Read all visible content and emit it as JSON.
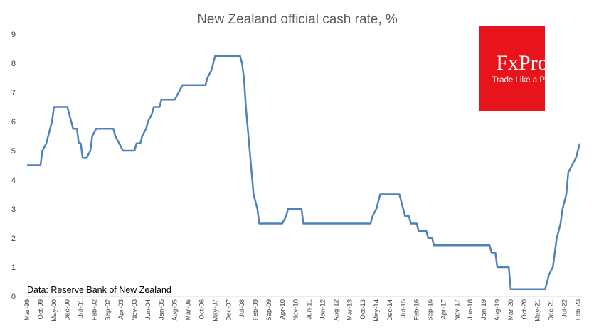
{
  "chart_data": {
    "type": "line",
    "title": "New Zealand official cash rate, %",
    "xlabel": "",
    "ylabel": "",
    "ylim": [
      0,
      9
    ],
    "y_ticks": [
      "0",
      "1",
      "2",
      "3",
      "4",
      "5",
      "6",
      "7",
      "8",
      "9"
    ],
    "x_tick_labels": [
      "Mar-99",
      "Oct-99",
      "May-00",
      "Dec-00",
      "Jul-01",
      "Feb-02",
      "Sep-02",
      "Apr-03",
      "Nov-03",
      "Jun-04",
      "Jan-05",
      "Aug-05",
      "Mar-06",
      "Oct-06",
      "May-07",
      "Dec-07",
      "Jul-08",
      "Feb-09",
      "Sep-09",
      "Apr-10",
      "Nov-10",
      "Jun-11",
      "Jan-12",
      "Aug-12",
      "Mar-13",
      "Oct-13",
      "May-14",
      "Dec-14",
      "Jul-15",
      "Feb-16",
      "Sep-16",
      "Apr-17",
      "Nov-17",
      "Jun-18",
      "Jan-19",
      "Aug-19",
      "Mar-20",
      "Oct-20",
      "May-21",
      "Dec-21",
      "Jul-22",
      "Feb-23"
    ],
    "grid": false,
    "line_color": "#4F81BD",
    "series": [
      {
        "points": [
          [
            "1999-03",
            4.5
          ],
          [
            "1999-10",
            4.5
          ],
          [
            "1999-11",
            5.0
          ],
          [
            "2000-01",
            5.25
          ],
          [
            "2000-03",
            5.75
          ],
          [
            "2000-04",
            6.0
          ],
          [
            "2000-05",
            6.5
          ],
          [
            "2000-12",
            6.5
          ],
          [
            "2001-01",
            6.25
          ],
          [
            "2001-03",
            5.75
          ],
          [
            "2001-05",
            5.75
          ],
          [
            "2001-06",
            5.25
          ],
          [
            "2001-07",
            5.25
          ],
          [
            "2001-08",
            4.75
          ],
          [
            "2001-10",
            4.75
          ],
          [
            "2001-12",
            5.0
          ],
          [
            "2002-01",
            5.5
          ],
          [
            "2002-03",
            5.75
          ],
          [
            "2002-06",
            5.75
          ],
          [
            "2002-09",
            5.75
          ],
          [
            "2002-12",
            5.75
          ],
          [
            "2003-01",
            5.5
          ],
          [
            "2003-03",
            5.25
          ],
          [
            "2003-05",
            5.0
          ],
          [
            "2003-11",
            5.0
          ],
          [
            "2003-12",
            5.25
          ],
          [
            "2004-02",
            5.25
          ],
          [
            "2004-03",
            5.5
          ],
          [
            "2004-05",
            5.75
          ],
          [
            "2004-06",
            6.0
          ],
          [
            "2004-08",
            6.25
          ],
          [
            "2004-09",
            6.5
          ],
          [
            "2004-12",
            6.5
          ],
          [
            "2005-01",
            6.75
          ],
          [
            "2005-08",
            6.75
          ],
          [
            "2005-10",
            7.0
          ],
          [
            "2005-12",
            7.25
          ],
          [
            "2006-08",
            7.25
          ],
          [
            "2006-12",
            7.25
          ],
          [
            "2007-01",
            7.5
          ],
          [
            "2007-03",
            7.75
          ],
          [
            "2007-04",
            8.0
          ],
          [
            "2007-05",
            8.25
          ],
          [
            "2007-12",
            8.25
          ],
          [
            "2008-06",
            8.25
          ],
          [
            "2008-07",
            8.0
          ],
          [
            "2008-08",
            7.5
          ],
          [
            "2008-09",
            6.5
          ],
          [
            "2008-11",
            5.0
          ],
          [
            "2009-01",
            3.5
          ],
          [
            "2009-03",
            3.0
          ],
          [
            "2009-04",
            2.5
          ],
          [
            "2010-04",
            2.5
          ],
          [
            "2010-06",
            2.75
          ],
          [
            "2010-07",
            3.0
          ],
          [
            "2011-02",
            3.0
          ],
          [
            "2011-03",
            2.5
          ],
          [
            "2014-02",
            2.5
          ],
          [
            "2014-03",
            2.75
          ],
          [
            "2014-05",
            3.0
          ],
          [
            "2014-06",
            3.25
          ],
          [
            "2014-07",
            3.5
          ],
          [
            "2015-05",
            3.5
          ],
          [
            "2015-06",
            3.25
          ],
          [
            "2015-07",
            3.0
          ],
          [
            "2015-08",
            2.75
          ],
          [
            "2015-10",
            2.75
          ],
          [
            "2015-11",
            2.5
          ],
          [
            "2016-02",
            2.5
          ],
          [
            "2016-03",
            2.25
          ],
          [
            "2016-07",
            2.25
          ],
          [
            "2016-08",
            2.0
          ],
          [
            "2016-10",
            2.0
          ],
          [
            "2016-11",
            1.75
          ],
          [
            "2019-04",
            1.75
          ],
          [
            "2019-05",
            1.5
          ],
          [
            "2019-07",
            1.5
          ],
          [
            "2019-08",
            1.0
          ],
          [
            "2020-02",
            1.0
          ],
          [
            "2020-03",
            0.25
          ],
          [
            "2021-09",
            0.25
          ],
          [
            "2021-10",
            0.5
          ],
          [
            "2021-11",
            0.75
          ],
          [
            "2022-01",
            1.0
          ],
          [
            "2022-02",
            1.5
          ],
          [
            "2022-03",
            2.0
          ],
          [
            "2022-05",
            2.5
          ],
          [
            "2022-06",
            3.0
          ],
          [
            "2022-07",
            3.25
          ],
          [
            "2022-08",
            3.5
          ],
          [
            "2022-09",
            4.25
          ],
          [
            "2022-11",
            4.5
          ],
          [
            "2023-01",
            4.75
          ],
          [
            "2023-02",
            5.0
          ],
          [
            "2023-03",
            5.25
          ]
        ]
      }
    ]
  },
  "source_note": "Data: Reserve Bank of New Zealand",
  "logo": {
    "brand": "FxPro",
    "tagline": "Trade Like a Pro",
    "color": "#E8141B"
  }
}
